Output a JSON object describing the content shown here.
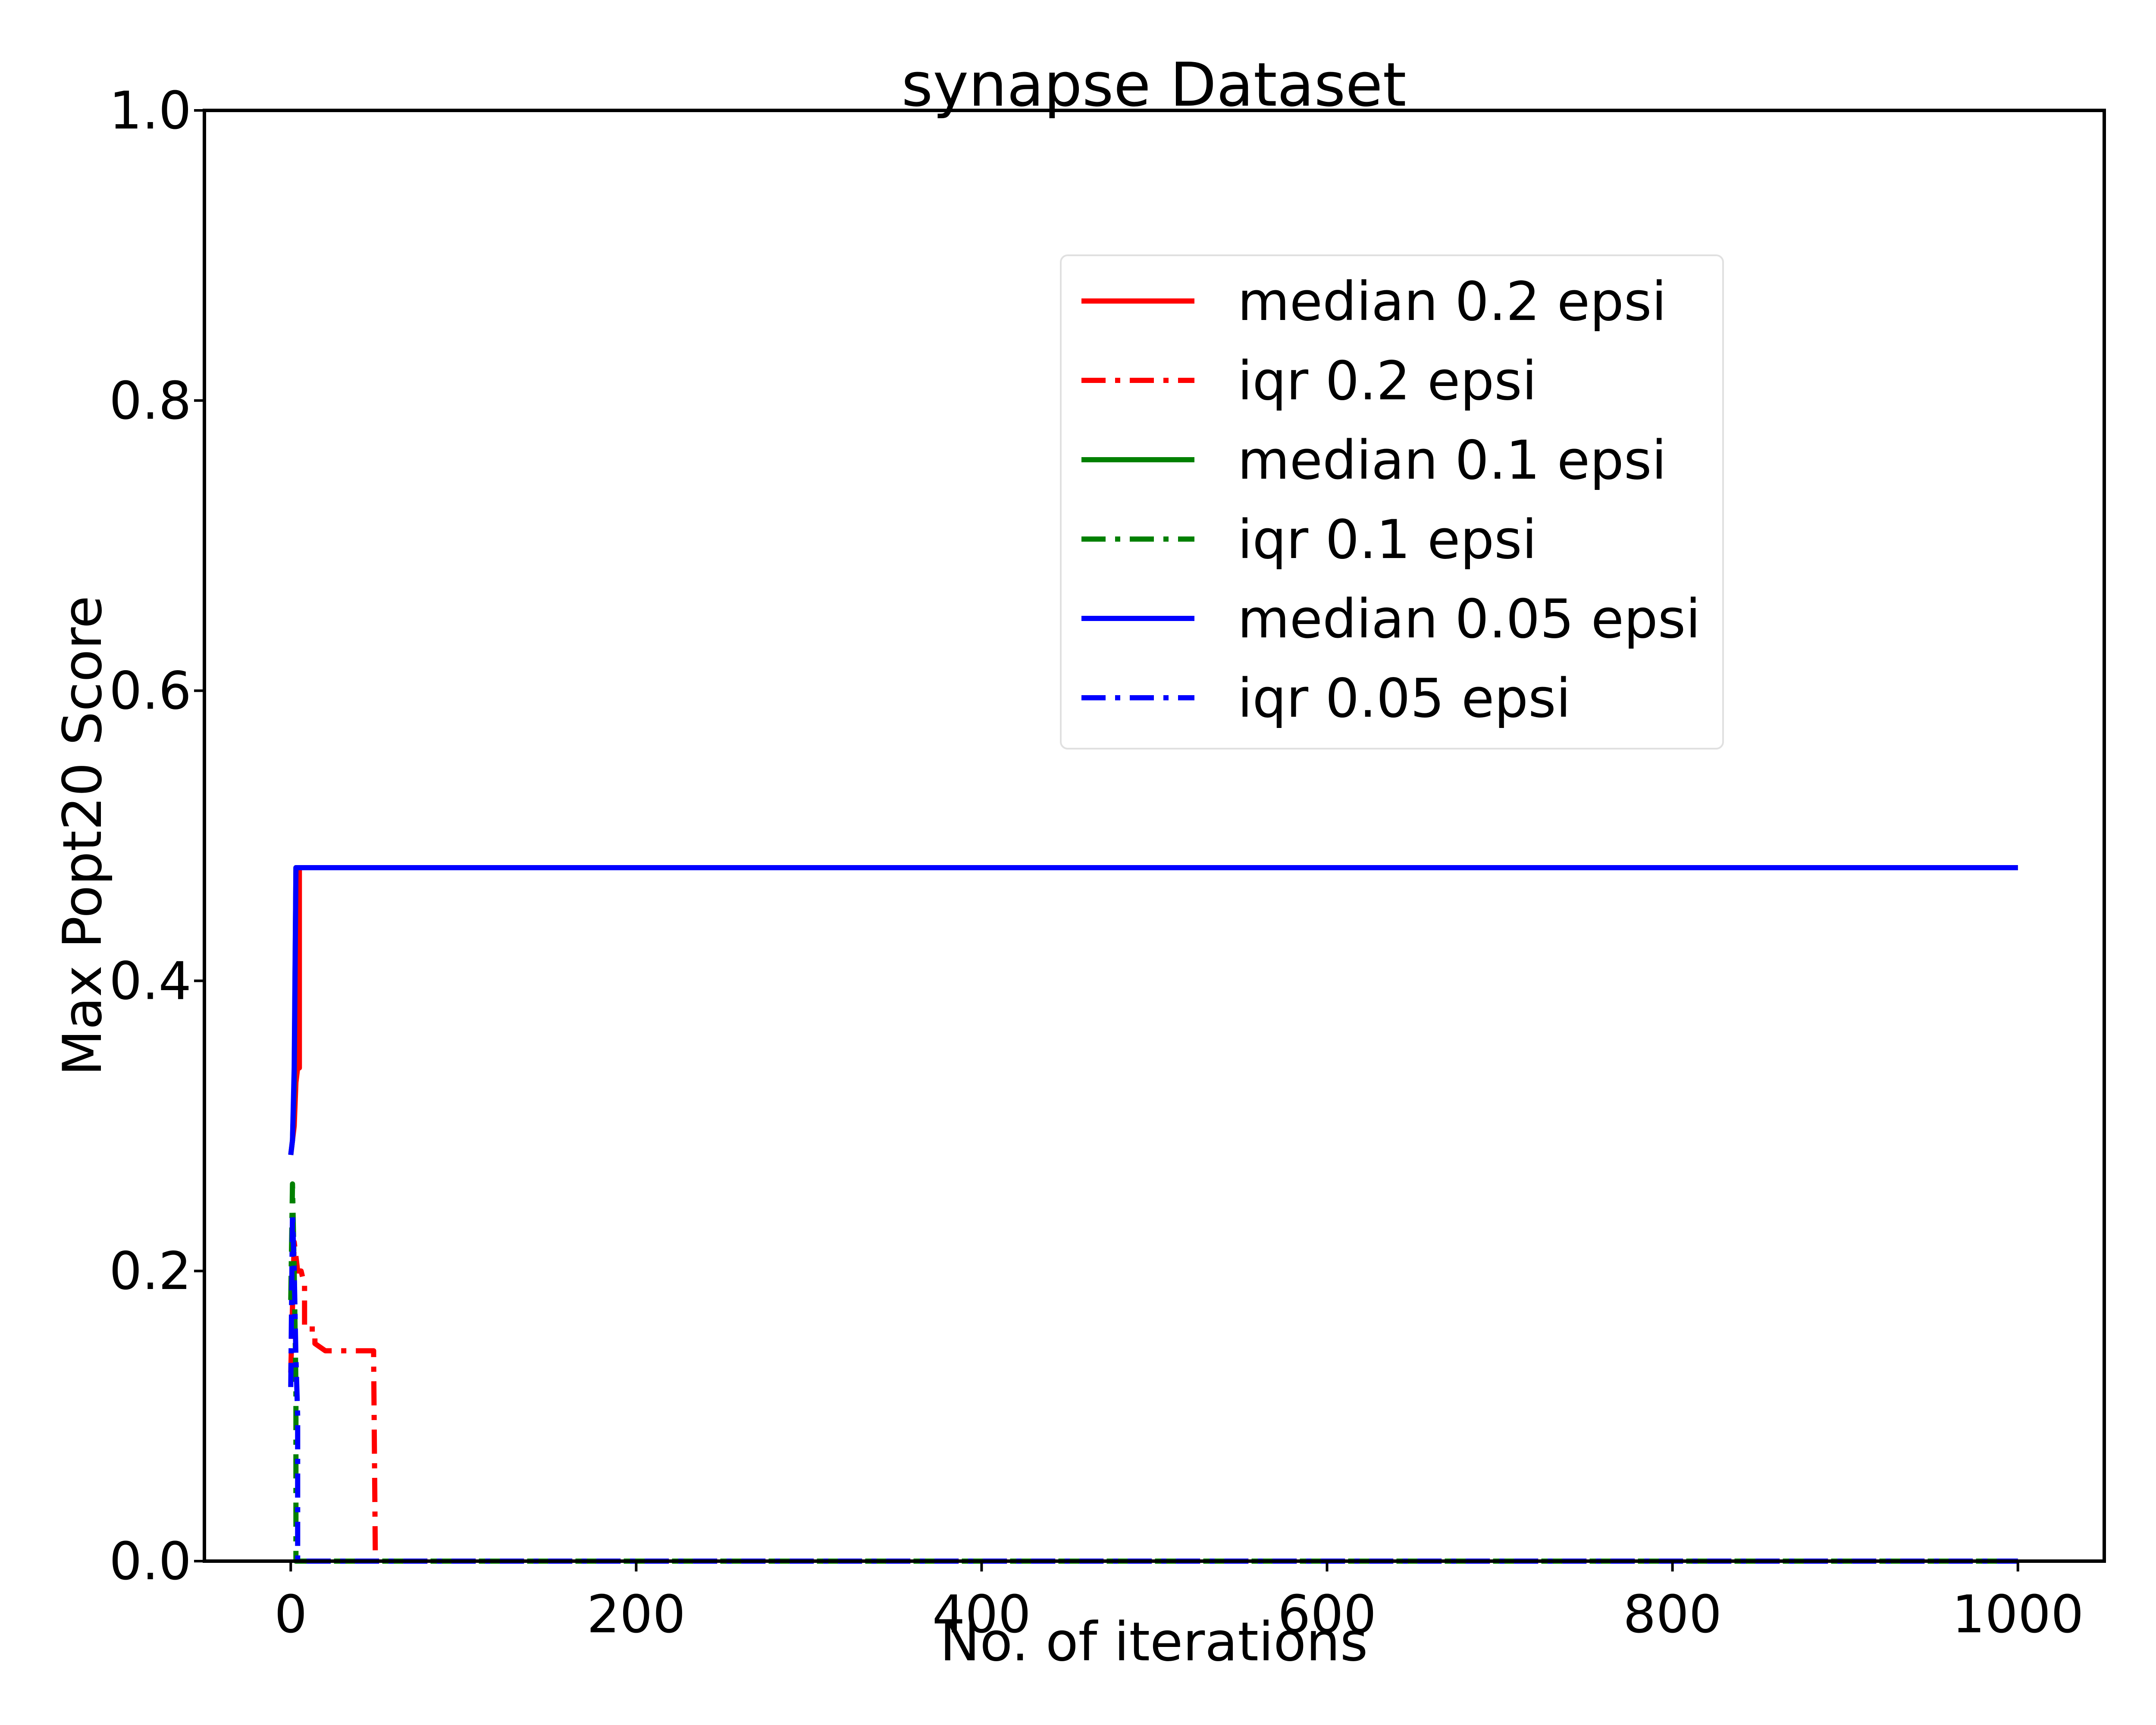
{
  "chart_data": {
    "type": "line",
    "title": "synapse Dataset",
    "xlabel": "No. of iterations",
    "ylabel": "Max Popt20 Score",
    "xlim": [
      -50,
      1050
    ],
    "ylim": [
      0.0,
      1.0
    ],
    "xticks": [
      0,
      200,
      400,
      600,
      800,
      1000
    ],
    "xtick_labels": [
      "0",
      "200",
      "400",
      "600",
      "800",
      "1000"
    ],
    "yticks": [
      0.0,
      0.2,
      0.4,
      0.6,
      0.8,
      1.0
    ],
    "ytick_labels": [
      "0.0",
      "0.2",
      "0.4",
      "0.6",
      "0.8",
      "1.0"
    ],
    "grid": false,
    "legend_position": "upper-right",
    "series": [
      {
        "name": "median 0.2 epsi",
        "color": "#ff0000",
        "style": "solid",
        "x": [
          0,
          1,
          2,
          3,
          4,
          5,
          5,
          1000
        ],
        "y": [
          0.28,
          0.29,
          0.3,
          0.33,
          0.34,
          0.34,
          0.478,
          0.478
        ]
      },
      {
        "name": "iqr 0.2 epsi",
        "color": "#ff0000",
        "style": "dashdot",
        "x": [
          0,
          2,
          4,
          6,
          8,
          8,
          14,
          14,
          20,
          48,
          48,
          49,
          1000
        ],
        "y": [
          0.13,
          0.22,
          0.2,
          0.2,
          0.19,
          0.16,
          0.16,
          0.15,
          0.145,
          0.145,
          0.14,
          0.0,
          0.0
        ]
      },
      {
        "name": "median 0.1 epsi",
        "color": "#008000",
        "style": "solid",
        "x": [
          0,
          1,
          2,
          3,
          1000
        ],
        "y": [
          0.28,
          0.29,
          0.33,
          0.478,
          0.478
        ]
      },
      {
        "name": "iqr 0.1 epsi",
        "color": "#008000",
        "style": "dashdot",
        "x": [
          0,
          1,
          2,
          3,
          3,
          1000
        ],
        "y": [
          0.18,
          0.26,
          0.2,
          0.12,
          0.0,
          0.0
        ]
      },
      {
        "name": "median 0.05 epsi",
        "color": "#0000ff",
        "style": "solid",
        "x": [
          0,
          1,
          2,
          3,
          1000
        ],
        "y": [
          0.28,
          0.29,
          0.34,
          0.478,
          0.478
        ]
      },
      {
        "name": "iqr 0.05 epsi",
        "color": "#0000ff",
        "style": "dashdot",
        "x": [
          0,
          1,
          2,
          3,
          4,
          4,
          1000
        ],
        "y": [
          0.12,
          0.24,
          0.2,
          0.14,
          0.1,
          0.0,
          0.0
        ]
      }
    ]
  }
}
